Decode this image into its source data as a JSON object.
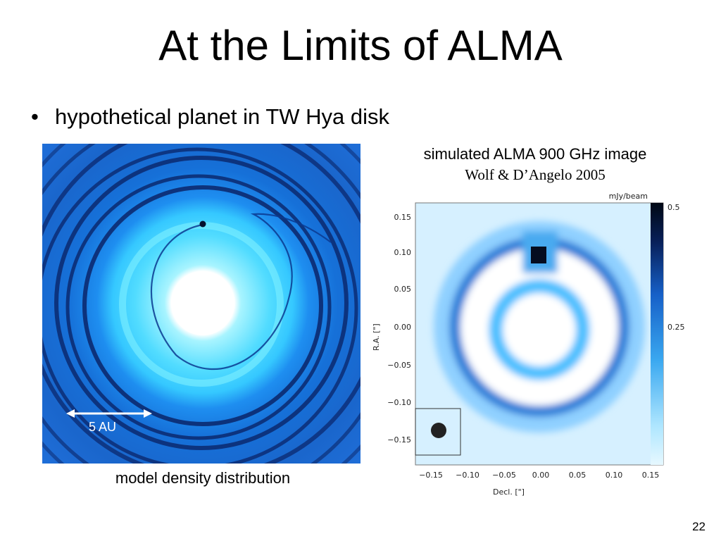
{
  "slide": {
    "title": "At the Limits of ALMA",
    "bullet_symbol": "•",
    "bullet": "hypothetical planet in TW Hya disk",
    "page_number": "22"
  },
  "left_panel": {
    "scale_bar_label": "5 AU",
    "caption": "model density distribution"
  },
  "right_panel": {
    "caption": "simulated ALMA 900 GHz image",
    "citation": "Wolf & D’Angelo 2005",
    "colorbar_unit": "mJy/beam",
    "colorbar_ticks": [
      "0.5",
      "0.25"
    ],
    "x_axis_label": "Decl. [\"]",
    "y_axis_label": "R.A. [\"]",
    "x_ticks": [
      "−0.15",
      "−0.10",
      "−0.05",
      "0.00",
      "0.05",
      "0.10",
      "0.15"
    ],
    "y_ticks": [
      "0.15",
      "0.10",
      "0.05",
      "0.00",
      "−0.05",
      "−0.10",
      "−0.15"
    ]
  },
  "colors": {
    "disk_dark": "#0a2a7a",
    "disk_mid": "#1a78e0",
    "disk_light": "#3fd0ff",
    "white": "#ffffff"
  }
}
